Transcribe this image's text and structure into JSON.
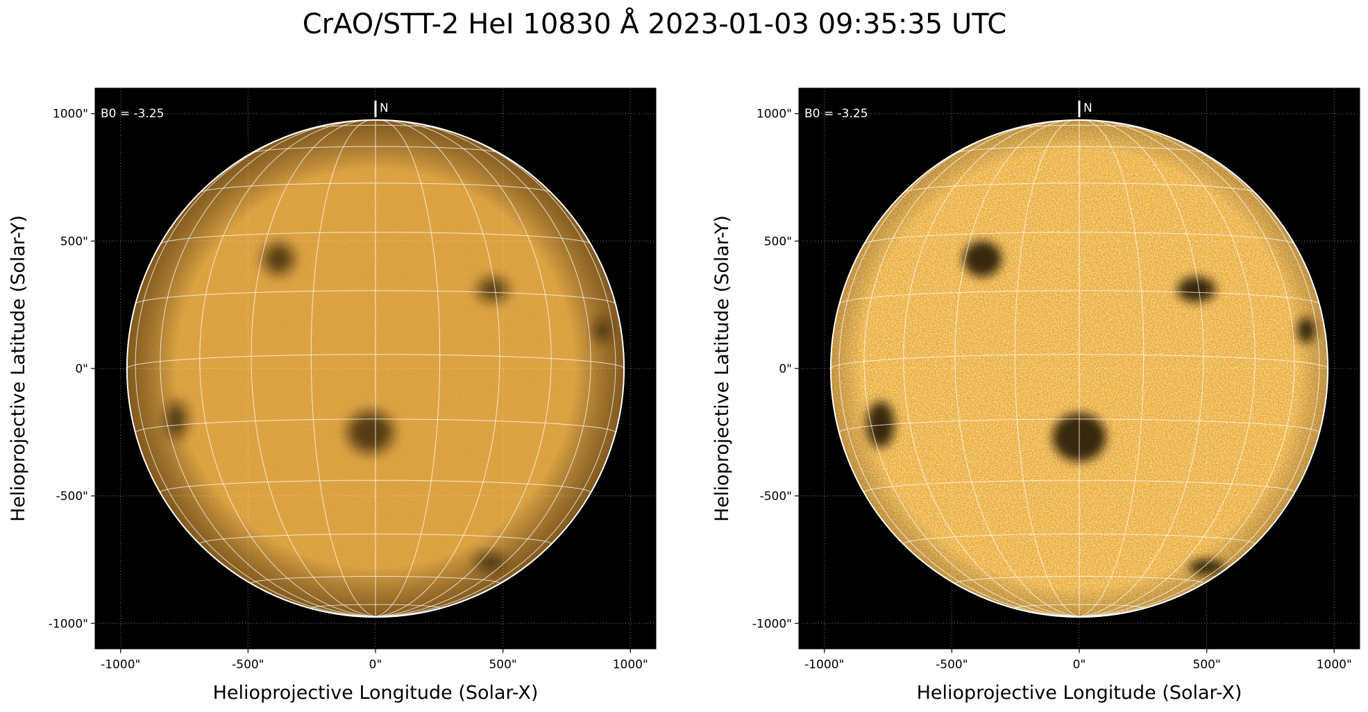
{
  "title": "CrAO/STT-2 HeI 10830 Å 2023-01-03 09:35:35 UTC",
  "panels": [
    {
      "id": "left",
      "variant": "standard-contrast",
      "b0_label": "B0 = -3.25",
      "north_label": "N",
      "xlabel": "Helioprojective Longitude (Solar-X)",
      "ylabel": "Helioprojective Latitude (Solar-Y)",
      "x_ticks": [
        "-1000\"",
        "-500\"",
        "0\"",
        "500\"",
        "1000\""
      ],
      "y_ticks": [
        "1000\"",
        "500\"",
        "0\"",
        "-500\"",
        "-1000\""
      ],
      "dark_features": [
        {
          "cx": -380,
          "cy": 430,
          "rx": 60,
          "ry": 60
        },
        {
          "cx": 460,
          "cy": 310,
          "rx": 60,
          "ry": 45
        },
        {
          "cx": 890,
          "cy": 150,
          "rx": 30,
          "ry": 45
        },
        {
          "cx": -20,
          "cy": -250,
          "rx": 90,
          "ry": 80
        },
        {
          "cx": -780,
          "cy": -200,
          "rx": 40,
          "ry": 70
        },
        {
          "cx": 450,
          "cy": -760,
          "rx": 60,
          "ry": 30
        }
      ]
    },
    {
      "id": "right",
      "variant": "enhanced-contrast",
      "b0_label": "B0 = -3.25",
      "north_label": "N",
      "xlabel": "Helioprojective Longitude (Solar-X)",
      "ylabel": "Helioprojective Latitude (Solar-Y)",
      "x_ticks": [
        "-1000\"",
        "-500\"",
        "0\"",
        "500\"",
        "1000\""
      ],
      "y_ticks": [
        "1000\"",
        "500\"",
        "0\"",
        "-500\"",
        "-1000\""
      ],
      "dark_features": [
        {
          "cx": -380,
          "cy": 430,
          "rx": 75,
          "ry": 70
        },
        {
          "cx": 460,
          "cy": 310,
          "rx": 75,
          "ry": 50
        },
        {
          "cx": 890,
          "cy": 150,
          "rx": 35,
          "ry": 50
        },
        {
          "cx": 0,
          "cy": -270,
          "rx": 105,
          "ry": 95
        },
        {
          "cx": -780,
          "cy": -220,
          "rx": 55,
          "ry": 90
        },
        {
          "cx": 500,
          "cy": -780,
          "rx": 70,
          "ry": 30
        }
      ]
    }
  ],
  "colors": {
    "disk_base_left": "#d28a16",
    "disk_base_right": "#e9a62a",
    "background": "#000000",
    "grid": "#ffffff"
  }
}
